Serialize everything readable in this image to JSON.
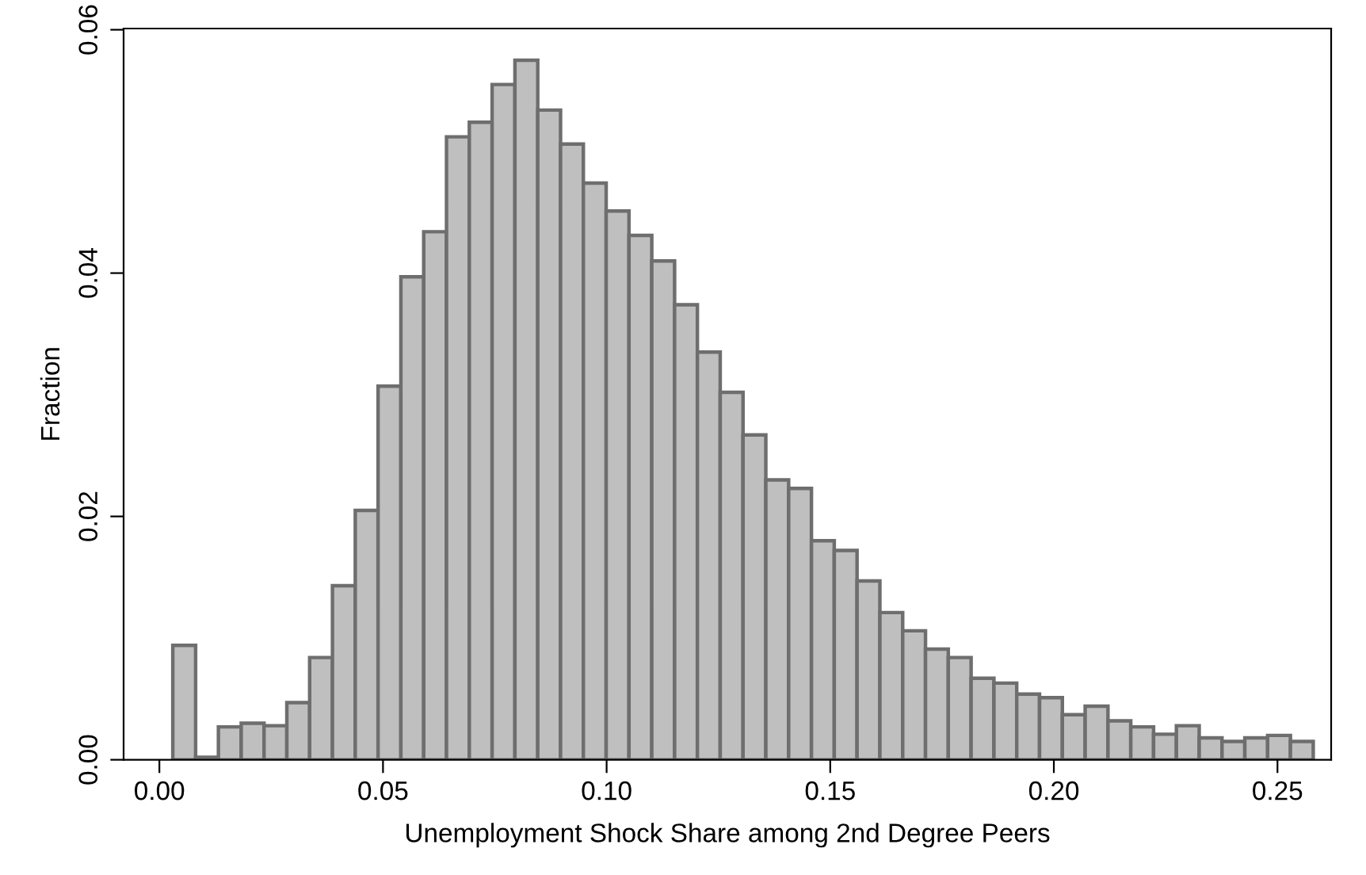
{
  "chart_data": {
    "type": "histogram",
    "xlabel": "Unemployment Shock Share among 2nd Degree Peers",
    "ylabel": "Fraction",
    "bins": [
      0.003,
      0.0081,
      0.0132,
      0.0183,
      0.0234,
      0.0285,
      0.0336,
      0.0387,
      0.0438,
      0.0489,
      0.054,
      0.0591,
      0.0642,
      0.0693,
      0.0744,
      0.0795,
      0.0846,
      0.0897,
      0.0948,
      0.0999,
      0.105,
      0.1101,
      0.1152,
      0.1203,
      0.1254,
      0.1305,
      0.1356,
      0.1407,
      0.1458,
      0.1509,
      0.156,
      0.1611,
      0.1662,
      0.1713,
      0.1764,
      0.1815,
      0.1866,
      0.1917,
      0.1968,
      0.2019,
      0.207,
      0.2121,
      0.2172,
      0.2223,
      0.2274,
      0.2325,
      0.2376,
      0.2427,
      0.2478,
      0.2529,
      0.258
    ],
    "values": [
      0.0094,
      0.0002,
      0.0027,
      0.003,
      0.0028,
      0.0047,
      0.0084,
      0.0143,
      0.0205,
      0.0307,
      0.0397,
      0.0434,
      0.0512,
      0.0524,
      0.0555,
      0.0575,
      0.0534,
      0.0506,
      0.0474,
      0.0451,
      0.0431,
      0.041,
      0.0374,
      0.0335,
      0.0302,
      0.0267,
      0.023,
      0.0223,
      0.018,
      0.0172,
      0.0147,
      0.0121,
      0.0106,
      0.0091,
      0.0084,
      0.0067,
      0.0063,
      0.0054,
      0.0051,
      0.0037,
      0.0044,
      0.0032,
      0.0027,
      0.0021,
      0.0028,
      0.0018,
      0.0015,
      0.0018,
      0.002,
      0.0015
    ],
    "color": "#bfbfbf",
    "xlim": [
      -0.008,
      0.262
    ],
    "ylim": [
      0,
      0.0601
    ],
    "xticks": [
      {
        "value": 0,
        "label": "0.00"
      },
      0.05,
      {
        "value": 0.1,
        "label": "0.10"
      },
      0.15,
      {
        "value": 0.2,
        "label": "0.20"
      },
      0.25
    ],
    "yticks": [
      {
        "value": 0,
        "label": "0.00"
      },
      0.02,
      0.04,
      0.06
    ],
    "grid": false,
    "legend": false
  }
}
